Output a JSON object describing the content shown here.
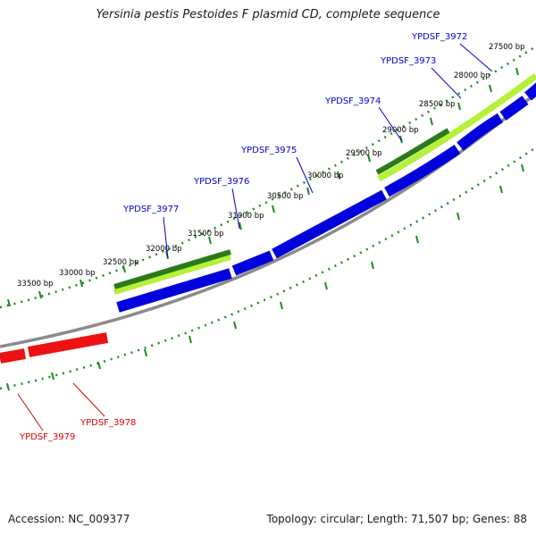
{
  "title": "Yersinia pestis Pestoides F plasmid CD, complete sequence",
  "footer": {
    "accession": "Accession: NC_009377",
    "summary": "Topology: circular; Length: 71,507 bp; Genes: 88"
  },
  "colors": {
    "backbone": "#8a8a8a",
    "ticks": "#1e8a1e",
    "forward_cds": "#0000dd",
    "reverse_cds": "#ee1111",
    "dark_green_feature": "#2a7a1a",
    "light_green_feature": "#b6f03a",
    "forward_label": "#0000cc",
    "reverse_label": "#dd0000"
  },
  "tick_labels": [
    "27500 bp",
    "28000 bp",
    "28500 bp",
    "29000 bp",
    "29500 bp",
    "30000 bp",
    "30500 bp",
    "31000 bp",
    "31500 bp",
    "32000 bp",
    "32500 bp",
    "33000 bp",
    "33500 bp"
  ],
  "gene_labels": {
    "forward": [
      "YPDSF_3972",
      "YPDSF_3973",
      "YPDSF_3974",
      "YPDSF_3975",
      "YPDSF_3976",
      "YPDSF_3977"
    ],
    "reverse": [
      "YPDSF_3978",
      "YPDSF_3979"
    ]
  }
}
